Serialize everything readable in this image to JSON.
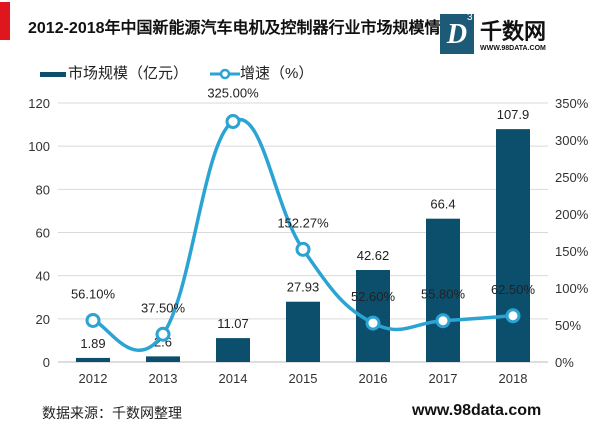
{
  "title": "2012-2018年中国新能源汽车电机及控制器行业市场规模情况",
  "logo": {
    "name": "千数网",
    "url": "WWW.98DATA.COM",
    "letter": "D",
    "sup": "3"
  },
  "source": "数据来源：千数网整理",
  "site": "www.98data.com",
  "colors": {
    "bar": "#0b4f6c",
    "line": "#2ba3d3",
    "accent": "#e0161e"
  },
  "chart_data": {
    "type": "bar+line",
    "categories": [
      "2012",
      "2013",
      "2014",
      "2015",
      "2016",
      "2017",
      "2018"
    ],
    "series": [
      {
        "name": "市场规模（亿元）",
        "type": "bar",
        "axis": "left",
        "values": [
          1.89,
          2.6,
          11.07,
          27.93,
          42.62,
          66.4,
          107.9
        ],
        "labels": [
          "1.89",
          "2.6",
          "11.07",
          "27.93",
          "42.62",
          "66.4",
          "107.9"
        ]
      },
      {
        "name": "增速（%）",
        "type": "line",
        "axis": "right",
        "smooth": true,
        "values": [
          56.1,
          37.5,
          325.0,
          152.27,
          52.6,
          55.8,
          62.5
        ],
        "labels": [
          "56.10%",
          "37.50%",
          "325.00%",
          "152.27%",
          "52.60%",
          "55.80%",
          "62.50%"
        ]
      }
    ],
    "y_left": {
      "range": [
        0,
        120
      ],
      "ticks": [
        "0",
        "20",
        "40",
        "60",
        "80",
        "100",
        "120"
      ]
    },
    "y_right": {
      "range": [
        0,
        350
      ],
      "ticks": [
        "0%",
        "50%",
        "100%",
        "150%",
        "200%",
        "250%",
        "300%",
        "350%"
      ]
    },
    "grid": true,
    "legend": "top-left"
  }
}
